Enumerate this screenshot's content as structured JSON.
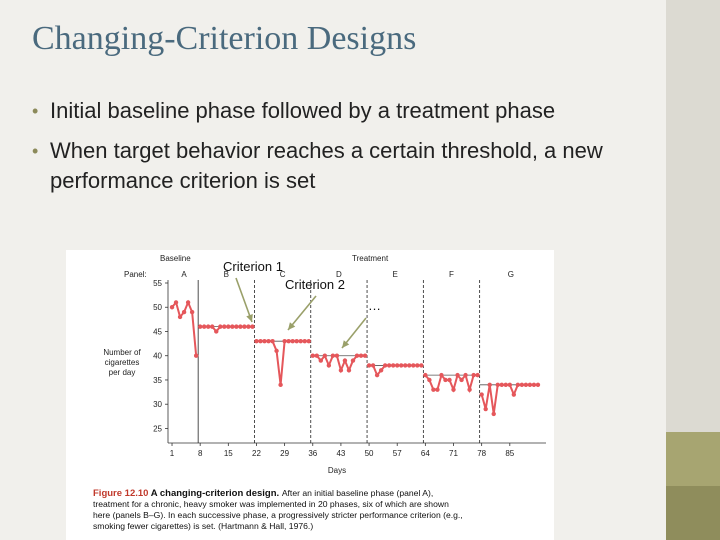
{
  "slide": {
    "title": "Changing-Criterion Designs",
    "bullets": [
      "Initial baseline phase followed by a treatment phase",
      "When target behavior reaches a certain threshold, a new performance criterion is set"
    ]
  },
  "annotations": {
    "criterion1": "Criterion 1",
    "criterion2": "Criterion 2",
    "ellipsis": "…"
  },
  "figure": {
    "caption_label": "Figure 12.10",
    "caption_title": "A changing-criterion design.",
    "caption_lines": [
      "After an initial baseline phase (panel A),",
      "treatment for a chronic, heavy smoker was implemented in 20 phases, six of which are shown",
      "here (panels B–G). In each successive phase, a progressively stricter performance criterion (e.g.,",
      "smoking fewer cigarettes) is set. (Hartmann & Hall, 1976.)"
    ]
  },
  "colors": {
    "data": "#e5575b",
    "arrow": "#9aa06a",
    "caption_label": "#c0392b",
    "title": "#4a6a7e"
  },
  "chart_data": {
    "type": "line",
    "phase_labels": {
      "baseline": "Baseline",
      "treatment": "Treatment"
    },
    "panel_prefix": "Panel:",
    "panels": [
      "A",
      "B",
      "C",
      "D",
      "E",
      "F",
      "G"
    ],
    "ylabel": [
      "Number of",
      "cigarettes",
      "per day"
    ],
    "xlabel": "Days",
    "yticks": [
      25,
      30,
      35,
      40,
      45,
      50,
      55
    ],
    "xticks": [
      1,
      8,
      15,
      22,
      29,
      36,
      43,
      50,
      57,
      64,
      71,
      78,
      85
    ],
    "ylim": [
      22,
      55
    ],
    "xlim": [
      0,
      94
    ],
    "phase_boundaries": [
      7.5,
      21.5,
      35.5,
      49.5,
      63.5,
      77.5
    ],
    "criteria": [
      {
        "x": [
          7.5,
          21.5
        ],
        "y": 46
      },
      {
        "x": [
          21.5,
          35.5
        ],
        "y": 43
      },
      {
        "x": [
          35.5,
          49.5
        ],
        "y": 40
      },
      {
        "x": [
          49.5,
          63.5
        ],
        "y": 38
      },
      {
        "x": [
          63.5,
          77.5
        ],
        "y": 36
      },
      {
        "x": [
          77.5,
          92
        ],
        "y": 34
      }
    ],
    "series": [
      {
        "x": [
          1,
          2,
          3,
          4,
          5,
          6,
          7,
          8,
          9,
          10,
          11,
          12,
          13,
          14,
          15,
          16,
          17,
          18,
          19,
          20,
          21,
          22,
          23,
          24,
          25,
          26,
          27,
          28,
          29,
          30,
          31,
          32,
          33,
          34,
          35,
          36,
          37,
          38,
          39,
          40,
          41,
          42,
          43,
          44,
          45,
          46,
          47,
          48,
          49,
          50,
          51,
          52,
          53,
          54,
          55,
          56,
          57,
          58,
          59,
          60,
          61,
          62,
          63,
          64,
          65,
          66,
          67,
          68,
          69,
          70,
          71,
          72,
          73,
          74,
          75,
          76,
          77,
          78,
          79,
          80,
          81,
          82,
          83,
          84,
          85,
          86,
          87,
          88,
          89,
          90,
          91,
          92
        ],
        "y": [
          50,
          51,
          48,
          49,
          51,
          49,
          40,
          46,
          46,
          46,
          46,
          45,
          46,
          46,
          46,
          46,
          46,
          46,
          46,
          46,
          46,
          43,
          43,
          43,
          43,
          43,
          41,
          34,
          43,
          43,
          43,
          43,
          43,
          43,
          43,
          40,
          40,
          39,
          40,
          38,
          40,
          40,
          37,
          39,
          37,
          39,
          40,
          40,
          40,
          38,
          38,
          36,
          37,
          38,
          38,
          38,
          38,
          38,
          38,
          38,
          38,
          38,
          38,
          36,
          35,
          33,
          33,
          36,
          35,
          35,
          33,
          36,
          35,
          36,
          33,
          36,
          36,
          32,
          29,
          34,
          28,
          34,
          34,
          34,
          34,
          32,
          34,
          34,
          34,
          34,
          34,
          34
        ]
      }
    ]
  }
}
